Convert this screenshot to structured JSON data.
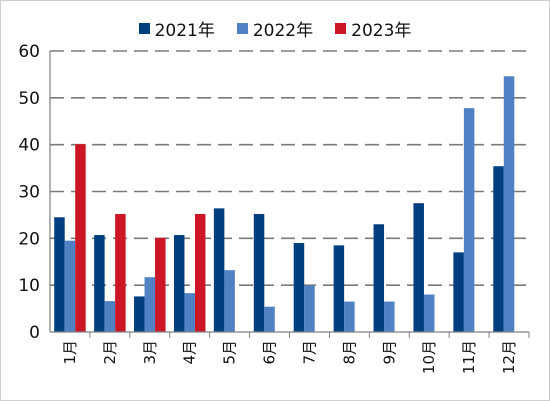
{
  "chart_data": {
    "type": "bar",
    "categories": [
      "1月",
      "2月",
      "3月",
      "4月",
      "5月",
      "6月",
      "7月",
      "8月",
      "9月",
      "10月",
      "11月",
      "12月"
    ],
    "series": [
      {
        "name": "2021年",
        "color": "#003f7f",
        "values": [
          24.5,
          20.7,
          7.6,
          20.7,
          26.4,
          25.2,
          19.0,
          18.5,
          23.0,
          27.5,
          17.0,
          35.4
        ]
      },
      {
        "name": "2022年",
        "color": "#4f81c4",
        "values": [
          19.5,
          6.6,
          11.7,
          8.3,
          13.2,
          5.4,
          9.9,
          6.5,
          6.5,
          8.0,
          47.8,
          54.6
        ]
      },
      {
        "name": "2023年",
        "color": "#cc1626",
        "values": [
          40.1,
          25.2,
          20.1,
          25.2,
          null,
          null,
          null,
          null,
          null,
          null,
          null,
          null
        ]
      }
    ],
    "ylim": [
      0,
      60
    ],
    "yticks": [
      "0",
      "10",
      "20",
      "30",
      "40",
      "50",
      "60"
    ],
    "grid": true,
    "legend_position": "top-center"
  }
}
